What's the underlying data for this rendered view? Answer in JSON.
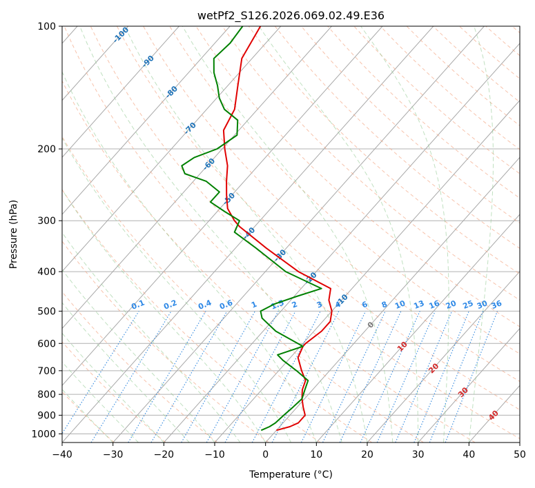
{
  "chart_data": {
    "type": "line",
    "title": "wetPf2_S126.2026.069.02.49.E36",
    "xlabel": "Temperature (°C)",
    "ylabel": "Pressure (hPa)",
    "xlim": [
      -40,
      50
    ],
    "ylim": [
      1050,
      100
    ],
    "y_scale": "log",
    "grid": true,
    "x_ticks": [
      -40,
      -30,
      -20,
      -10,
      0,
      10,
      20,
      30,
      40,
      50
    ],
    "y_ticks": [
      100,
      200,
      300,
      400,
      500,
      600,
      700,
      800,
      900,
      1000
    ],
    "skew_isotherm_labels": [
      -100,
      -90,
      -80,
      -70,
      -60,
      -50,
      -40,
      -30,
      -20,
      -10,
      0,
      10,
      20,
      30,
      40
    ],
    "mixing_ratio_labels": [
      "0.1",
      "0.2",
      "0.4",
      "0.6",
      "1",
      "1.5",
      "2",
      "3",
      "4",
      "6",
      "8",
      "10",
      "13",
      "16",
      "20",
      "25",
      "30",
      "36"
    ],
    "series": [
      {
        "color": "#e00000",
        "pressure": [
          980,
          960,
          940,
          900,
          860,
          820,
          780,
          740,
          700,
          650,
          610,
          600,
          560,
          530,
          500,
          470,
          440,
          400,
          350,
          310,
          300,
          280,
          260,
          240,
          220,
          200,
          180,
          160,
          140,
          120,
          100
        ],
        "temperature": [
          0,
          2.0,
          3.0,
          3.0,
          1.2,
          -0.5,
          -2.0,
          -3.0,
          -5.5,
          -8.5,
          -9.5,
          -9.5,
          -8.5,
          -8.5,
          -10.0,
          -12.5,
          -14.2,
          -23.5,
          -34.0,
          -43.0,
          -45.0,
          -48.5,
          -51.0,
          -53.5,
          -56.0,
          -59.5,
          -63.0,
          -64.5,
          -68.0,
          -72.0,
          -74.0
        ]
      },
      {
        "color": "#008000",
        "pressure": [
          980,
          960,
          940,
          900,
          860,
          820,
          780,
          740,
          700,
          660,
          640,
          610,
          560,
          520,
          500,
          480,
          460,
          440,
          400,
          350,
          320,
          300,
          285,
          270,
          255,
          240,
          230,
          220,
          210,
          200,
          185,
          170,
          160,
          150,
          140,
          130,
          120,
          110,
          100
        ],
        "temperature": [
          -3.0,
          -2.0,
          -1.5,
          -1.2,
          -0.8,
          -0.5,
          -1.5,
          -2.5,
          -6.5,
          -11.0,
          -13.0,
          -9.5,
          -17.5,
          -22.5,
          -24.0,
          -22.5,
          -19.5,
          -16.0,
          -26.0,
          -36.0,
          -43.0,
          -44.0,
          -48.5,
          -53.0,
          -53.0,
          -57.5,
          -63.0,
          -65.0,
          -64.0,
          -61.0,
          -59.5,
          -62.0,
          -66.5,
          -69.5,
          -72.0,
          -75.0,
          -77.5,
          -77.0,
          -77.5
        ]
      }
    ]
  }
}
